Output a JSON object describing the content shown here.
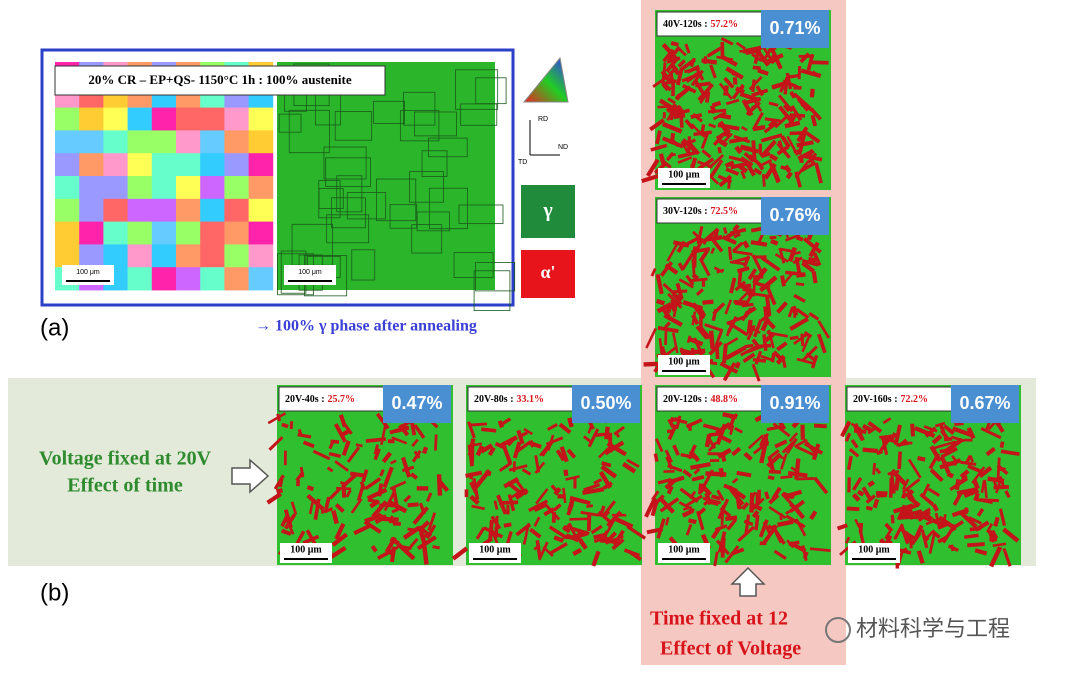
{
  "panel_a": {
    "label": "(a)",
    "header": "20% CR – EP+QS- 1150°C 1h : 100% austenite",
    "scale_bars": [
      "100 μm",
      "100 μm"
    ],
    "axes": {
      "rd": "RD",
      "nd": "ND",
      "td": "TD"
    },
    "legend": {
      "gamma": "γ",
      "alpha": "α'"
    },
    "caption": "→ 100% γ phase after annealing"
  },
  "panel_b": {
    "label": "(b)",
    "row_label": [
      "Voltage fixed at 20V",
      "Effect of time"
    ],
    "column_label": [
      "Time fixed at 12",
      "Effect of Voltage"
    ],
    "maps": [
      {
        "condition": "20V-40s :",
        "fraction": "25.7%",
        "value": "0.47%",
        "scale_bar": "100 μm"
      },
      {
        "condition": "20V-80s :",
        "fraction": "33.1%",
        "value": "0.50%",
        "scale_bar": "100 μm"
      },
      {
        "condition": "20V-120s :",
        "fraction": "48.8%",
        "value": "0.91%",
        "scale_bar": "100 μm"
      },
      {
        "condition": "20V-160s :",
        "fraction": "72.2%",
        "value": "0.67%",
        "scale_bar": "100 μm"
      },
      {
        "condition": "30V-120s :",
        "fraction": "72.5%",
        "value": "0.76%",
        "scale_bar": "100 μm"
      },
      {
        "condition": "40V-120s :",
        "fraction": "57.2%",
        "value": "0.71%",
        "scale_bar": "100 μm"
      }
    ]
  },
  "watermark": "材料科学与工程"
}
